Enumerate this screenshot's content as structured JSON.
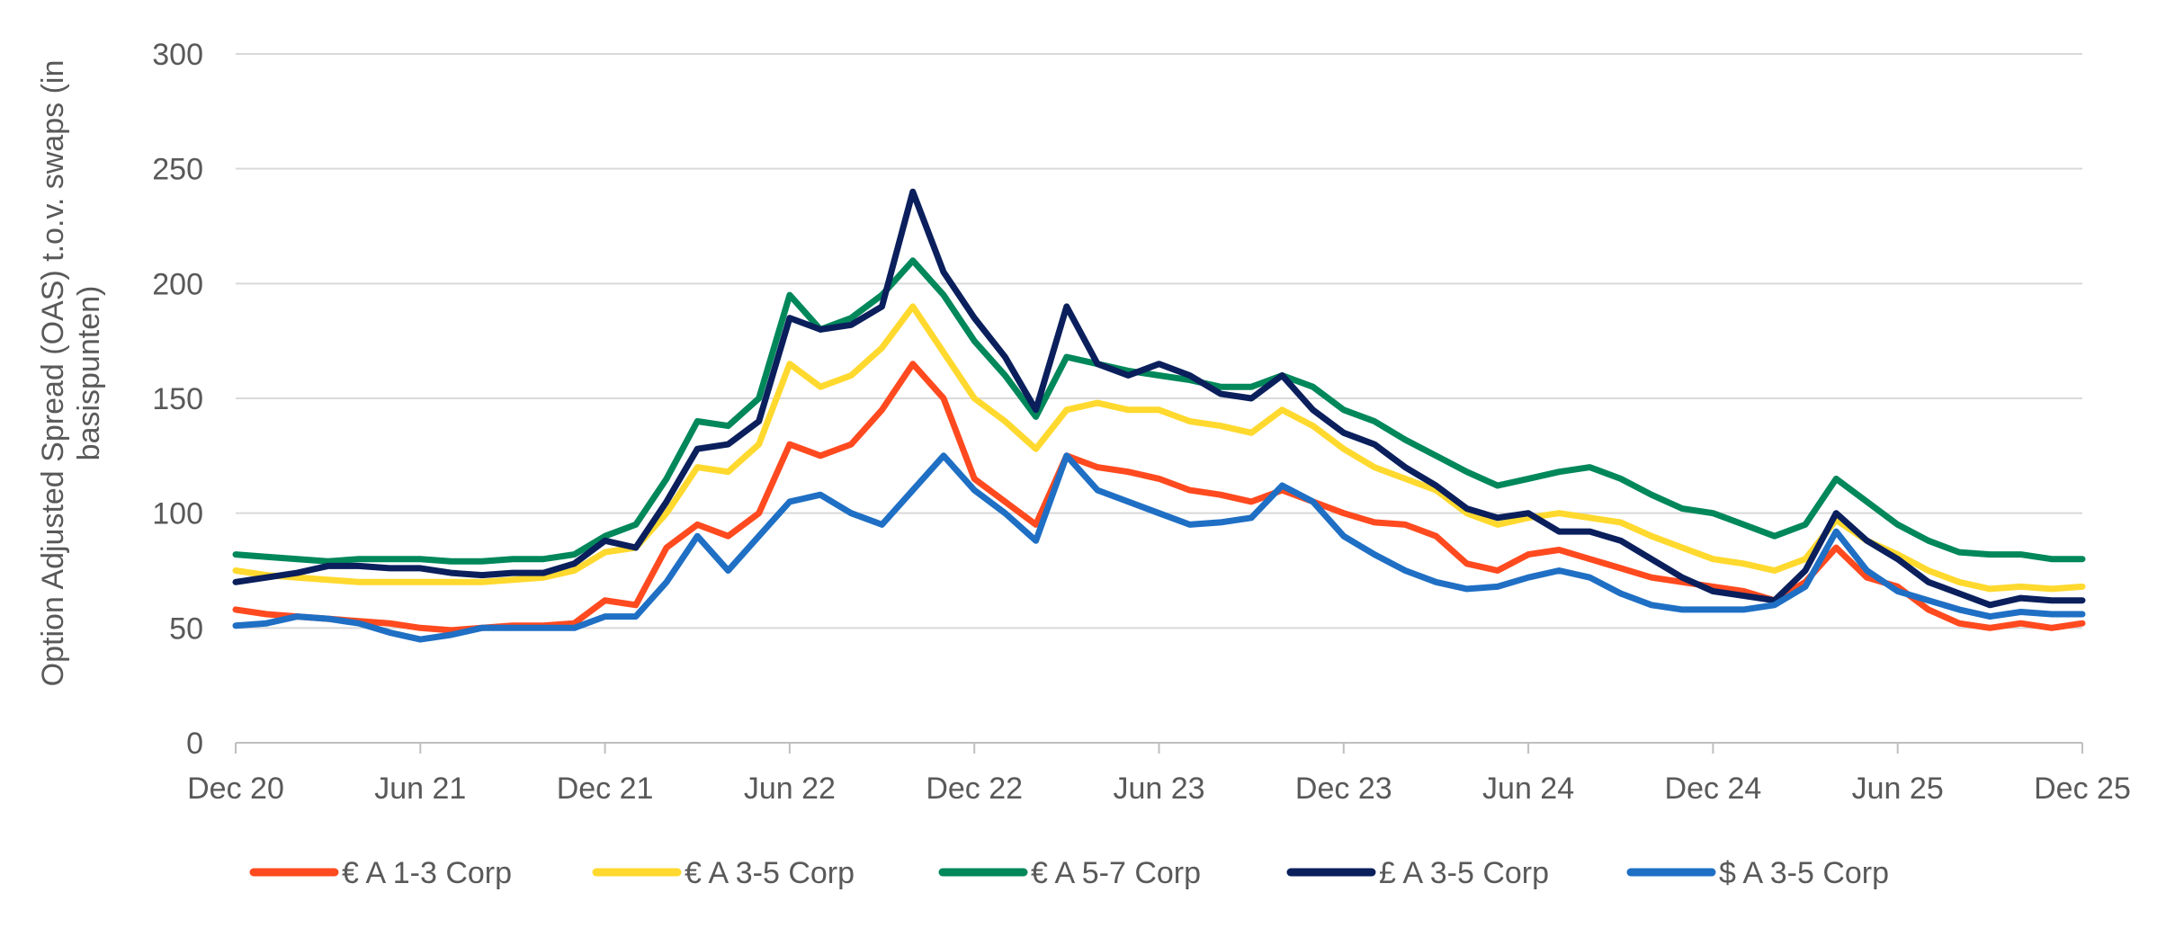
{
  "chart_data": {
    "type": "line",
    "title": "",
    "xlabel": "",
    "ylabel": "Option Adjusted Spread (OAS) t.o.v. swaps (in basispunten)",
    "ylabel_lines": [
      "Option Adjusted Spread (OAS) t.o.v. swaps (in",
      "basispunten)"
    ],
    "ylim": [
      0,
      300
    ],
    "yticks": [
      0,
      50,
      100,
      150,
      200,
      250,
      300
    ],
    "grid": true,
    "legend_position": "bottom",
    "x_index": [
      0,
      1,
      2,
      3,
      4,
      5,
      6,
      7,
      8,
      9,
      10,
      11,
      12,
      13,
      14,
      15,
      16,
      17,
      18,
      19,
      20,
      21,
      22,
      23,
      24,
      25,
      26,
      27,
      28,
      29,
      30,
      31,
      32,
      33,
      34,
      35,
      36,
      37,
      38,
      39,
      40,
      41,
      42,
      43,
      44,
      45,
      46,
      47,
      48,
      49,
      50,
      51,
      52,
      53,
      54,
      55,
      56,
      57,
      58,
      59,
      60
    ],
    "x_range": [
      0,
      60
    ],
    "xticks": [
      {
        "label": "Dec 20",
        "index": 0
      },
      {
        "label": "Jun 21",
        "index": 6
      },
      {
        "label": "Dec 21",
        "index": 12
      },
      {
        "label": "Jun 22",
        "index": 18
      },
      {
        "label": "Dec 22",
        "index": 24
      },
      {
        "label": "Jun 23",
        "index": 30
      },
      {
        "label": "Dec 23",
        "index": 36
      },
      {
        "label": "Jun 24",
        "index": 42
      },
      {
        "label": "Dec 24",
        "index": 48
      },
      {
        "label": "Jun 25",
        "index": 54
      },
      {
        "label": "Dec 25",
        "index": 60
      }
    ],
    "series": [
      {
        "name": "€ A 1-3 Corp",
        "color": "#FF4A1F",
        "values": [
          58,
          56,
          55,
          54,
          53,
          52,
          50,
          49,
          50,
          51,
          51,
          52,
          62,
          60,
          85,
          95,
          90,
          100,
          130,
          125,
          130,
          145,
          165,
          150,
          115,
          105,
          95,
          125,
          120,
          118,
          115,
          110,
          108,
          105,
          110,
          105,
          100,
          96,
          95,
          90,
          78,
          75,
          82,
          84,
          80,
          76,
          72,
          70,
          68,
          66,
          62,
          70,
          85,
          72,
          68,
          58,
          52,
          50,
          52,
          50,
          52
        ]
      },
      {
        "name": "€ A 3-5 Corp",
        "color": "#FFD92E",
        "values": [
          75,
          73,
          72,
          71,
          70,
          70,
          70,
          70,
          70,
          71,
          72,
          75,
          83,
          85,
          100,
          120,
          118,
          130,
          165,
          155,
          160,
          172,
          190,
          170,
          150,
          140,
          128,
          145,
          148,
          145,
          145,
          140,
          138,
          135,
          145,
          138,
          128,
          120,
          115,
          110,
          100,
          95,
          98,
          100,
          98,
          96,
          90,
          85,
          80,
          78,
          75,
          80,
          97,
          88,
          82,
          75,
          70,
          67,
          68,
          67,
          68
        ]
      },
      {
        "name": "€ A 5-7 Corp",
        "color": "#00875A",
        "values": [
          82,
          81,
          80,
          79,
          80,
          80,
          80,
          79,
          79,
          80,
          80,
          82,
          90,
          95,
          115,
          140,
          138,
          150,
          195,
          180,
          185,
          195,
          210,
          195,
          175,
          160,
          142,
          168,
          165,
          162,
          160,
          158,
          155,
          155,
          160,
          155,
          145,
          140,
          132,
          125,
          118,
          112,
          115,
          118,
          120,
          115,
          108,
          102,
          100,
          95,
          90,
          95,
          115,
          105,
          95,
          88,
          83,
          82,
          82,
          80,
          80
        ]
      },
      {
        "name": "£ A 3-5 Corp",
        "color": "#0A1F5C",
        "values": [
          70,
          72,
          74,
          77,
          77,
          76,
          76,
          74,
          73,
          74,
          74,
          78,
          88,
          85,
          105,
          128,
          130,
          140,
          185,
          180,
          182,
          190,
          240,
          205,
          185,
          168,
          145,
          190,
          165,
          160,
          165,
          160,
          152,
          150,
          160,
          145,
          135,
          130,
          120,
          112,
          102,
          98,
          100,
          92,
          92,
          88,
          80,
          72,
          66,
          64,
          62,
          75,
          100,
          88,
          80,
          70,
          65,
          60,
          63,
          62,
          62
        ]
      },
      {
        "name": "$ A 3-5 Corp",
        "color": "#1F6FC4",
        "values": [
          51,
          52,
          55,
          54,
          52,
          48,
          45,
          47,
          50,
          50,
          50,
          50,
          55,
          55,
          70,
          90,
          75,
          90,
          105,
          108,
          100,
          95,
          110,
          125,
          110,
          100,
          88,
          125,
          110,
          105,
          100,
          95,
          96,
          98,
          112,
          105,
          90,
          82,
          75,
          70,
          67,
          68,
          72,
          75,
          72,
          65,
          60,
          58,
          58,
          58,
          60,
          68,
          92,
          75,
          66,
          62,
          58,
          55,
          57,
          56,
          56
        ]
      }
    ]
  }
}
